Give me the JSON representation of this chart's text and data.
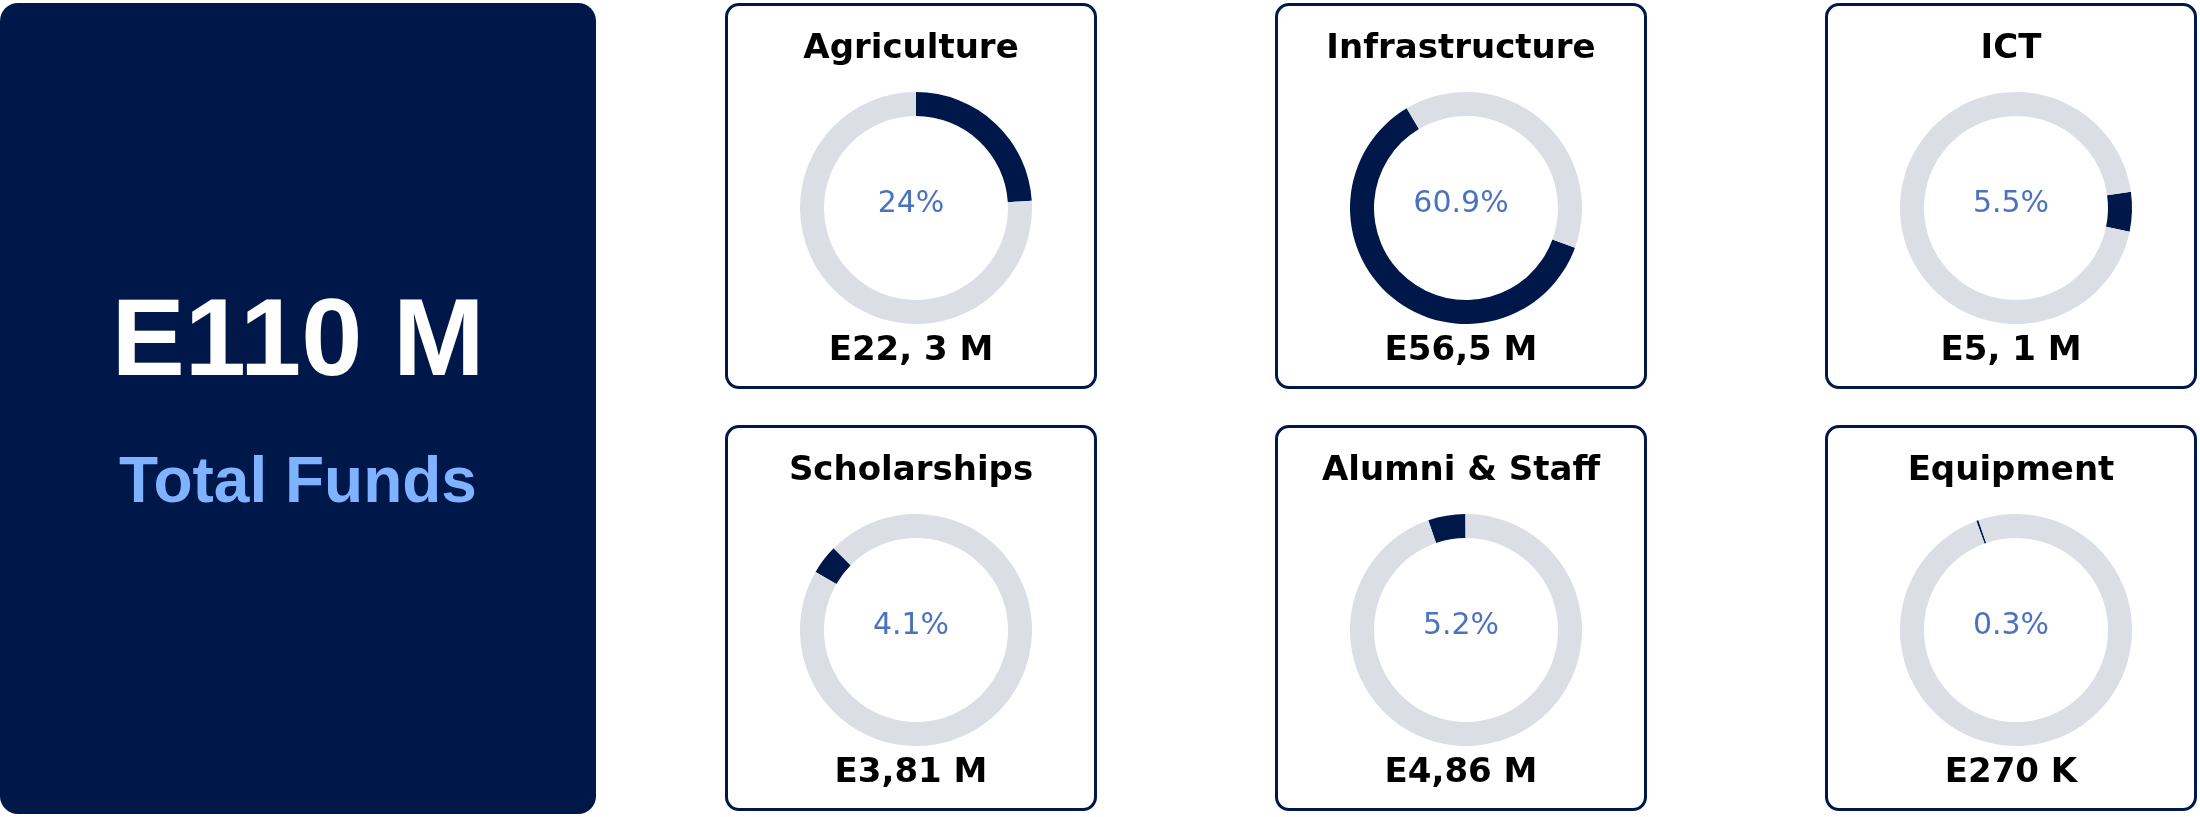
{
  "chart_data": [
    {
      "type": "other",
      "title": "E110 M",
      "subtitle": "Total Funds"
    },
    {
      "type": "donut",
      "title": "Agriculture",
      "categories": [
        null,
        null
      ],
      "values": [
        24,
        76
      ],
      "colors": [
        "#00174a",
        "#dcdee6"
      ],
      "annotations": [
        "24%",
        "E22, 3 M"
      ]
    },
    {
      "type": "donut",
      "title": "Infrastructure",
      "categories": [
        null,
        null
      ],
      "values": [
        60.9,
        39.1
      ],
      "colors": [
        "#00174a",
        "#dcdee6"
      ],
      "annotations": [
        "60.9%",
        "E56,5 M"
      ]
    },
    {
      "type": "donut",
      "title": "ICT",
      "categories": [
        null,
        null
      ],
      "values": [
        5.5,
        94.5
      ],
      "colors": [
        "#00174a",
        "#dcdee6"
      ],
      "annotations": [
        "5.5%",
        "E5, 1 M"
      ]
    },
    {
      "type": "donut",
      "title": "Scholarships",
      "categories": [
        null,
        null
      ],
      "values": [
        4.1,
        95.9
      ],
      "colors": [
        "#00174a",
        "#dcdee6"
      ],
      "annotations": [
        "4.1%",
        "E3,81 M"
      ]
    },
    {
      "type": "donut",
      "title": "Alumni & Staff",
      "categories": [
        null,
        null
      ],
      "values": [
        5.2,
        94.8
      ],
      "colors": [
        "#00174a",
        "#dcdee6"
      ],
      "annotations": [
        "5.2%",
        "E4,86 M"
      ]
    },
    {
      "type": "donut",
      "title": "Equipment",
      "categories": [
        null,
        null
      ],
      "values": [
        0.3,
        99.7
      ],
      "colors": [
        "#00174a",
        "#dcdee6"
      ],
      "annotations": [
        "0.3%",
        "E270 K"
      ]
    }
  ]
}
